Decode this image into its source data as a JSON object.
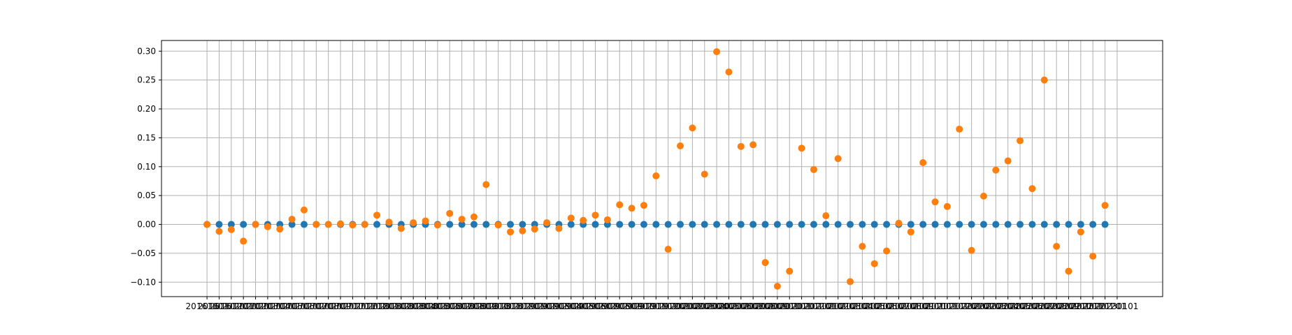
{
  "chart_data": {
    "type": "scatter",
    "categories": [
      "20161001",
      "20161101",
      "20161201",
      "20170101",
      "20170201",
      "20170301",
      "20170401",
      "20170501",
      "20170601",
      "20170701",
      "20170801",
      "20170901",
      "20171001",
      "20171101",
      "20171201",
      "20180101",
      "20180201",
      "20180301",
      "20180401",
      "20180501",
      "20180601",
      "20180701",
      "20180801",
      "20180901",
      "20181001",
      "20181101",
      "20181201",
      "20190101",
      "20190201",
      "20190301",
      "20190401",
      "20190501",
      "20190601",
      "20190701",
      "20190801",
      "20190901",
      "20191001",
      "20191101",
      "20191201",
      "20200101",
      "20200201",
      "20200301",
      "20200401",
      "20200501",
      "20200601",
      "20200701",
      "20200801",
      "20200901",
      "20201001",
      "20201101",
      "20201201",
      "20210101",
      "20210201",
      "20210301",
      "20210401",
      "20210501",
      "20210601",
      "20210701",
      "20210801",
      "20210901",
      "20211001",
      "20211101",
      "20211201",
      "20220101",
      "20220201",
      "20220301",
      "20220401",
      "20220501",
      "20220601",
      "20220701",
      "20220801",
      "20220901",
      "20221001",
      "20221101",
      "20221201",
      "20230101"
    ],
    "series": [
      {
        "color": "#1f77b4",
        "values": [
          0,
          0,
          0,
          0,
          0,
          0,
          0,
          0,
          0,
          0,
          0,
          0,
          0,
          0,
          0,
          0,
          0,
          0,
          0,
          0,
          0,
          0,
          0,
          0,
          0,
          0,
          0,
          0,
          0,
          0,
          0,
          0,
          0,
          0,
          0,
          0,
          0,
          0,
          0,
          0,
          0,
          0,
          0,
          0,
          0,
          0,
          0,
          0,
          0,
          0,
          0,
          0,
          0,
          0,
          0,
          0,
          0,
          0,
          0,
          0,
          0,
          0,
          0,
          0,
          0,
          0,
          0,
          0,
          0,
          0,
          0,
          0,
          0,
          0,
          0,
          null
        ]
      },
      {
        "color": "#ff7f0e",
        "values": [
          0,
          -0.012,
          -0.009,
          -0.029,
          0,
          -0.004,
          -0.008,
          0.009,
          0.025,
          0,
          0,
          0.001,
          -0.001,
          0,
          0.016,
          0.004,
          -0.007,
          0.003,
          0.006,
          -0.001,
          0.019,
          0.009,
          0.013,
          0.069,
          -0.001,
          -0.013,
          -0.011,
          -0.008,
          0.003,
          -0.007,
          0.011,
          0.007,
          0.016,
          0.008,
          0.034,
          0.028,
          0.033,
          0.084,
          -0.043,
          0.136,
          0.167,
          0.087,
          0.299,
          0.264,
          0.135,
          0.138,
          -0.066,
          -0.107,
          -0.081,
          0.132,
          0.095,
          0.015,
          0.114,
          -0.099,
          -0.038,
          -0.068,
          -0.046,
          0.002,
          -0.013,
          0.107,
          0.039,
          0.031,
          0.165,
          -0.045,
          0.049,
          0.094,
          0.11,
          0.145,
          0.062,
          0.25,
          -0.038,
          -0.081,
          -0.013,
          -0.055,
          0.033,
          null
        ]
      }
    ],
    "ylim": [
      -0.125,
      0.3185
    ],
    "yticks": [
      {
        "value": -0.1,
        "label": "−0.10"
      },
      {
        "value": -0.05,
        "label": "−0.05"
      },
      {
        "value": 0,
        "label": "0.00"
      },
      {
        "value": 0.05,
        "label": "0.05"
      },
      {
        "value": 0.1,
        "label": "0.10"
      },
      {
        "value": 0.15,
        "label": "0.15"
      },
      {
        "value": 0.2,
        "label": "0.20"
      },
      {
        "value": 0.25,
        "label": "0.25"
      },
      {
        "value": 0.3,
        "label": "0.30"
      }
    ],
    "grid": true
  }
}
